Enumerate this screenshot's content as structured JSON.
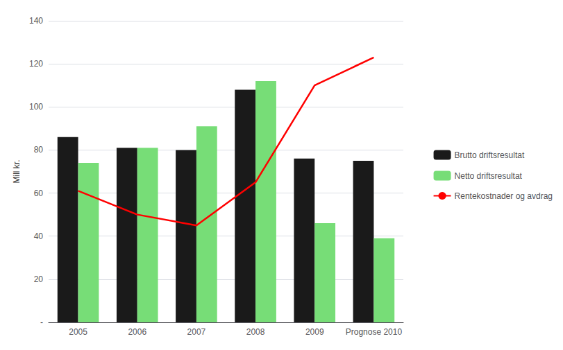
{
  "chart_data": {
    "type": "bar",
    "categories": [
      "2005",
      "2006",
      "2007",
      "2008",
      "2009",
      "Prognose 2010"
    ],
    "series": [
      {
        "name": "Brutto driftsresultat",
        "type": "bar",
        "color": "#1a1a1a",
        "values": [
          86,
          81,
          80,
          108,
          76,
          75
        ]
      },
      {
        "name": "Netto driftsresultat",
        "type": "bar",
        "color": "#77dd77",
        "values": [
          74,
          81,
          91,
          112,
          46,
          39
        ]
      },
      {
        "name": "Rentekostnader og avdrag",
        "type": "line",
        "color": "#ff0000",
        "values": [
          61,
          50,
          45,
          65,
          110,
          123
        ]
      }
    ],
    "ylabel": "Mill kr.",
    "ylim": [
      0,
      140
    ],
    "yticks": [
      {
        "value": 0,
        "label": "-"
      },
      20,
      40,
      60,
      80,
      100,
      120,
      140
    ],
    "grid": true,
    "legend": "right"
  }
}
